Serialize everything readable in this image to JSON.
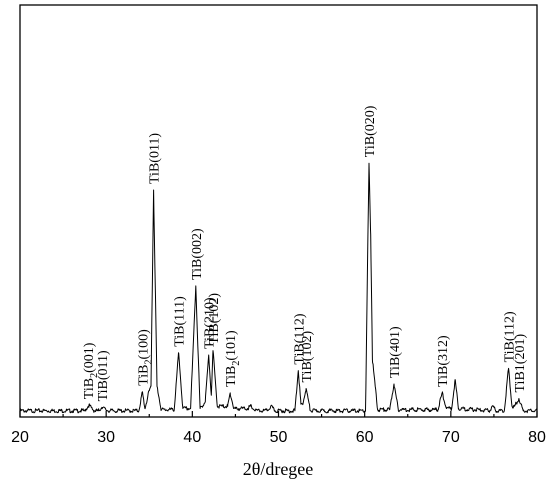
{
  "chart_data": {
    "type": "line",
    "title": "",
    "xlabel": "2θ/dregee",
    "ylabel": "",
    "xlim": [
      20,
      80
    ],
    "ylim": [
      0,
      100
    ],
    "xticks": [
      20,
      30,
      40,
      50,
      60,
      70,
      80
    ],
    "y_ticks_shown": false,
    "grid": false,
    "legend": "none",
    "series": [
      {
        "x": [
          20,
          27.5,
          28,
          28.6,
          29.1,
          29.5,
          30.2,
          33.8,
          34.2,
          34.5,
          35,
          35.2,
          35.5,
          35.9,
          36.4,
          37.9,
          38.4,
          38.9,
          39.8,
          40.4,
          40.9,
          41.5,
          41.9,
          42.2,
          42.4,
          42.9,
          44.1,
          44.4,
          44.8,
          46.4,
          46.8,
          47.3,
          48.7,
          49.1,
          49.6,
          51.9,
          52.3,
          52.6,
          52.8,
          53.2,
          53.7,
          60.1,
          60.5,
          60.7,
          60.9,
          61.5,
          62.9,
          63.4,
          63.9,
          68.5,
          69,
          69.5,
          70.1,
          70.5,
          70.9,
          74.5,
          74.9,
          75.2,
          76.2,
          76.7,
          77.1,
          77.4,
          77.9,
          78.4,
          80
        ],
        "y": [
          1,
          1,
          3.5,
          1,
          1,
          2.5,
          1,
          1,
          9.5,
          2,
          10,
          12,
          100,
          12,
          1.5,
          1.5,
          27,
          2,
          2,
          57,
          2,
          5,
          26,
          8,
          28,
          3,
          3,
          9,
          2,
          2,
          3,
          1,
          1,
          3,
          1,
          1,
          19,
          4,
          4,
          11,
          1,
          1,
          112,
          80,
          24,
          1.5,
          1.5,
          13,
          1.5,
          1.5,
          9,
          2,
          2,
          15,
          2,
          1,
          3,
          1,
          1,
          20,
          3,
          3,
          6.5,
          1,
          1
        ]
      }
    ],
    "annotations": [
      {
        "text": "TiB2(001)",
        "main": "TiB",
        "sub": "2",
        "rest": "(001)",
        "x": 27.9,
        "y": 3.5
      },
      {
        "text": "TiB(011)",
        "x": 29.5,
        "y": 2.5
      },
      {
        "text": "TiB2(100)",
        "main": "TiB",
        "sub": "2",
        "rest": "(100)",
        "x": 34.2,
        "y": 9.5
      },
      {
        "text": "TiB(011)",
        "x": 35.5,
        "y": 100
      },
      {
        "text": "TiB(111)",
        "x": 38.4,
        "y": 27
      },
      {
        "text": "TiB(002)",
        "x": 40.4,
        "y": 57
      },
      {
        "text": "TiB(210)",
        "x": 41.9,
        "y": 26
      },
      {
        "text": "TiB(102)",
        "x": 42.4,
        "y": 28
      },
      {
        "text": "TiB2(101)",
        "main": "TiB",
        "sub": "2",
        "rest": "(101)",
        "x": 44.4,
        "y": 9
      },
      {
        "text": "TiB(112)",
        "x": 52.3,
        "y": 19
      },
      {
        "text": "TiB(102)",
        "x": 53.2,
        "y": 11
      },
      {
        "text": "TiB(020)",
        "x": 60.5,
        "y": 112
      },
      {
        "text": "TiB(401)",
        "x": 63.4,
        "y": 13
      },
      {
        "text": "TiB(312)",
        "x": 69.0,
        "y": 9
      },
      {
        "text": "TiB(112)",
        "x": 76.7,
        "y": 20
      },
      {
        "text": "TiB1(201)",
        "x": 77.9,
        "y": 6.5
      }
    ]
  }
}
